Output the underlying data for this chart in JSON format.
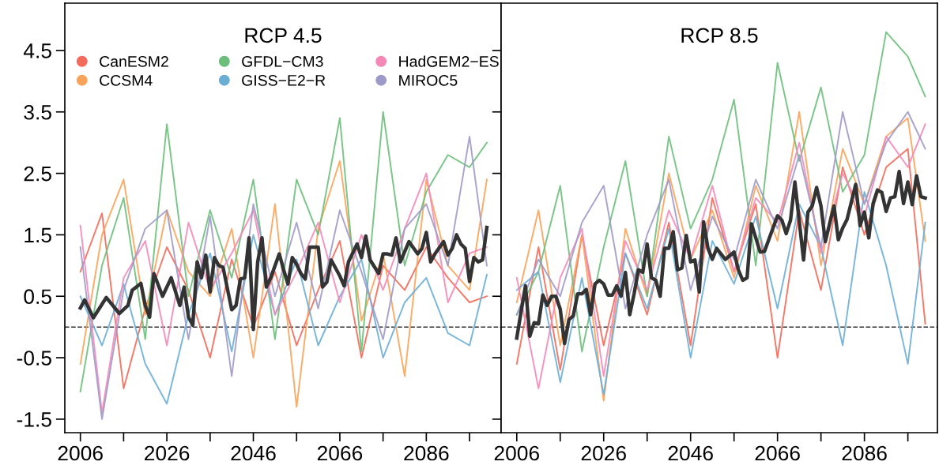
{
  "chart_data": [
    {
      "type": "line",
      "title": "RCP 4.5",
      "xlim": [
        2002.4,
        2103.3
      ],
      "ylim": [
        -1.72,
        5.27
      ],
      "xticks": [
        2006,
        {
          "value": 2016,
          "label": null
        },
        2026,
        {
          "value": 2036,
          "label": null
        },
        2046,
        {
          "value": 2056,
          "label": null
        },
        2066,
        {
          "value": 2076,
          "label": null
        },
        2086,
        {
          "value": 2096,
          "label": null
        }
      ],
      "yticks": [
        -1.5,
        -0.5,
        0.5,
        1.5,
        2.5,
        3.5,
        4.5
      ],
      "legend": "top",
      "grid": false,
      "marker": "none",
      "line_style": "solid",
      "ref_lines": [
        {
          "axis": "y",
          "value": 0,
          "line_style": "dashed",
          "color": "#333333"
        }
      ],
      "series": [
        {
          "name": "CanESM2",
          "color": "#f26b5b",
          "x": [
            2006,
            2011,
            2016,
            2021,
            2026,
            2031,
            2036,
            2041,
            2046,
            2051,
            2056,
            2061,
            2066,
            2071,
            2076,
            2081,
            2086,
            2091,
            2096,
            2100
          ],
          "values": [
            0.9,
            1.85,
            -1.0,
            0.3,
            1.3,
            0.6,
            -0.5,
            1.1,
            0.0,
            0.9,
            -0.3,
            0.6,
            1.4,
            -0.5,
            1.0,
            0.6,
            1.3,
            0.8,
            0.4,
            0.5
          ]
        },
        {
          "name": "CCSM4",
          "color": "#f9a35a",
          "x": [
            2006,
            2011,
            2016,
            2021,
            2026,
            2031,
            2036,
            2041,
            2046,
            2051,
            2056,
            2061,
            2066,
            2071,
            2076,
            2081,
            2086,
            2091,
            2096,
            2100
          ],
          "values": [
            -0.6,
            1.5,
            2.4,
            0.2,
            1.9,
            0.9,
            0.5,
            1.6,
            -0.5,
            2.0,
            -1.3,
            1.6,
            2.7,
            0.1,
            1.2,
            -0.8,
            2.4,
            1.0,
            0.6,
            2.4
          ]
        },
        {
          "name": "GFDL−CM3",
          "color": "#6cbf7a",
          "x": [
            2006,
            2011,
            2016,
            2021,
            2026,
            2031,
            2036,
            2041,
            2046,
            2051,
            2056,
            2061,
            2066,
            2071,
            2076,
            2081,
            2086,
            2091,
            2096,
            2100
          ],
          "values": [
            -1.05,
            1.0,
            2.1,
            -0.2,
            3.3,
            0.5,
            1.9,
            0.8,
            2.4,
            -0.2,
            2.4,
            1.5,
            3.4,
            -0.4,
            3.5,
            1.0,
            2.2,
            2.8,
            2.6,
            3.0
          ]
        },
        {
          "name": "GISS−E2−R",
          "color": "#6aaed6",
          "x": [
            2006,
            2011,
            2016,
            2021,
            2026,
            2031,
            2036,
            2041,
            2046,
            2051,
            2056,
            2061,
            2066,
            2071,
            2076,
            2081,
            2086,
            2091,
            2096,
            2100
          ],
          "values": [
            0.5,
            -0.3,
            0.7,
            -0.6,
            -1.25,
            0.2,
            1.2,
            -0.4,
            1.5,
            0.2,
            1.1,
            -0.3,
            0.5,
            1.1,
            -0.5,
            0.4,
            0.8,
            -0.1,
            -0.3,
            0.85
          ]
        },
        {
          "name": "HadGEM2−ES",
          "color": "#f489b8",
          "x": [
            2006,
            2011,
            2016,
            2021,
            2026,
            2031,
            2036,
            2041,
            2046,
            2051,
            2056,
            2061,
            2066,
            2071,
            2076,
            2081,
            2086,
            2091,
            2096,
            2100
          ],
          "values": [
            1.65,
            -1.4,
            0.8,
            1.4,
            -0.3,
            1.7,
            0.6,
            1.2,
            1.9,
            0.2,
            0.9,
            1.7,
            0.4,
            1.5,
            0.6,
            1.6,
            2.5,
            0.4,
            1.2,
            1.3
          ]
        },
        {
          "name": "MIROC5",
          "color": "#9e9ac8",
          "x": [
            2006,
            2011,
            2016,
            2021,
            2026,
            2031,
            2036,
            2041,
            2046,
            2051,
            2056,
            2061,
            2066,
            2071,
            2076,
            2081,
            2086,
            2091,
            2096,
            2100
          ],
          "values": [
            1.3,
            -1.5,
            0.6,
            1.6,
            1.9,
            -0.2,
            1.8,
            -0.8,
            2.0,
            0.5,
            1.7,
            0.3,
            1.9,
            0.9,
            -0.2,
            1.6,
            2.0,
            1.0,
            3.1,
            1.0
          ]
        },
        {
          "color": "#333333",
          "x": [
            2006,
            2007,
            2009,
            2012,
            2015,
            2017,
            2018,
            2020,
            2021,
            2022,
            2023,
            2025,
            2027,
            2029,
            2030,
            2031,
            2032,
            2033,
            2034,
            2035,
            2036,
            2037,
            2038,
            2039,
            2041,
            2042,
            2043,
            2044,
            2045,
            2046,
            2047,
            2048,
            2049,
            2050,
            2052,
            2053,
            2054,
            2055,
            2056,
            2057,
            2058,
            2059,
            2061,
            2062,
            2063,
            2064,
            2066,
            2067,
            2068,
            2070,
            2071,
            2072,
            2073,
            2075,
            2076,
            2077,
            2078,
            2079,
            2080,
            2082,
            2084,
            2085,
            2086,
            2087,
            2088,
            2090,
            2091,
            2092,
            2093,
            2094,
            2095,
            2096,
            2097,
            2098,
            2099,
            2100
          ],
          "values": [
            0.31,
            0.44,
            0.15,
            0.48,
            0.22,
            0.35,
            0.6,
            0.71,
            0.35,
            0.16,
            0.87,
            0.5,
            0.8,
            0.35,
            0.65,
            0.16,
            0.03,
            1.06,
            0.8,
            1.17,
            0.57,
            1.13,
            1.0,
            0.97,
            0.28,
            0.35,
            0.78,
            0.8,
            1.45,
            -0.04,
            1.06,
            1.45,
            0.65,
            0.8,
            1.19,
            0.93,
            0.7,
            1.13,
            1.02,
            0.87,
            0.78,
            1.3,
            1.3,
            0.65,
            0.73,
            1.09,
            0.83,
            0.67,
            1.06,
            1.35,
            1.13,
            1.48,
            1.09,
            0.87,
            1.19,
            1.19,
            1.17,
            1.45,
            1.06,
            1.39,
            1.19,
            1.28,
            1.54,
            1.06,
            1.19,
            1.39,
            1.17,
            1.28,
            1.5,
            1.35,
            1.28,
            0.74,
            1.13,
            1.06,
            1.09,
            1.62
          ]
        }
      ]
    },
    {
      "type": "line",
      "title": "RCP 8.5",
      "xlim": [
        2002.4,
        2102.8
      ],
      "ylim": [
        -1.72,
        5.27
      ],
      "xticks": [
        2006,
        {
          "value": 2016,
          "label": null
        },
        2026,
        {
          "value": 2036,
          "label": null
        },
        2046,
        {
          "value": 2056,
          "label": null
        },
        2066,
        {
          "value": 2076,
          "label": null
        },
        2086,
        {
          "value": 2096,
          "label": null
        }
      ],
      "yticks": [
        -1.5,
        -0.5,
        0.5,
        1.5,
        2.5,
        3.5,
        4.5
      ],
      "tick_labels": "x",
      "grid": false,
      "marker": "none",
      "line_style": "solid",
      "ref_lines": [
        {
          "axis": "y",
          "value": 0,
          "line_style": "dashed",
          "color": "#333333"
        }
      ],
      "series": [
        {
          "color": "#f26b5b",
          "x": [
            2006,
            2011,
            2016,
            2021,
            2026,
            2031,
            2036,
            2041,
            2046,
            2051,
            2056,
            2061,
            2066,
            2071,
            2076,
            2081,
            2086,
            2091,
            2096,
            2100
          ],
          "values": [
            -0.6,
            1.3,
            -0.7,
            1.5,
            -0.3,
            1.2,
            0.2,
            1.7,
            -0.3,
            2.1,
            0.9,
            2.0,
            -0.5,
            1.9,
            0.6,
            2.6,
            1.5,
            2.6,
            2.9,
            0.05
          ]
        },
        {
          "color": "#f9a35a",
          "x": [
            2006,
            2011,
            2016,
            2021,
            2026,
            2031,
            2036,
            2041,
            2046,
            2051,
            2056,
            2061,
            2066,
            2071,
            2076,
            2081,
            2086,
            2091,
            2096,
            2100
          ],
          "values": [
            0.4,
            1.9,
            -0.3,
            1.5,
            -1.2,
            1.6,
            0.5,
            2.5,
            1.1,
            1.9,
            0.8,
            2.3,
            1.4,
            3.5,
            1.0,
            2.9,
            2.0,
            3.1,
            3.4,
            1.4
          ]
        },
        {
          "color": "#6cbf7a",
          "x": [
            2006,
            2011,
            2016,
            2021,
            2026,
            2031,
            2036,
            2041,
            2046,
            2051,
            2056,
            2061,
            2066,
            2071,
            2076,
            2081,
            2086,
            2091,
            2096,
            2100
          ],
          "values": [
            0.2,
            0.9,
            2.3,
            -0.4,
            1.3,
            2.7,
            0.5,
            3.1,
            1.6,
            2.4,
            3.7,
            1.0,
            4.3,
            2.7,
            3.9,
            2.2,
            2.8,
            4.8,
            4.4,
            3.75
          ]
        },
        {
          "color": "#6aaed6",
          "x": [
            2006,
            2011,
            2016,
            2021,
            2026,
            2031,
            2036,
            2041,
            2046,
            2051,
            2056,
            2061,
            2066,
            2071,
            2076,
            2081,
            2086,
            2091,
            2096,
            2100
          ],
          "values": [
            0.6,
            0.9,
            -0.9,
            0.8,
            -1.1,
            1.2,
            0.3,
            1.6,
            -0.5,
            1.4,
            0.7,
            1.8,
            0.3,
            2.0,
            1.3,
            -0.3,
            2.2,
            1.0,
            -0.6,
            1.7
          ]
        },
        {
          "color": "#f489b8",
          "x": [
            2006,
            2011,
            2016,
            2021,
            2026,
            2031,
            2036,
            2041,
            2046,
            2051,
            2056,
            2061,
            2066,
            2071,
            2076,
            2081,
            2086,
            2091,
            2096,
            2100
          ],
          "values": [
            0.8,
            -1.0,
            0.8,
            1.6,
            -0.8,
            1.4,
            0.6,
            1.9,
            1.1,
            2.3,
            0.9,
            2.1,
            1.7,
            3.0,
            1.2,
            2.5,
            1.8,
            3.1,
            2.6,
            3.3
          ]
        },
        {
          "color": "#9e9ac8",
          "x": [
            2006,
            2011,
            2016,
            2021,
            2026,
            2031,
            2036,
            2041,
            2046,
            2051,
            2056,
            2061,
            2066,
            2071,
            2076,
            2081,
            2086,
            2091,
            2096,
            2100
          ],
          "values": [
            0.2,
            1.1,
            0.5,
            1.7,
            2.3,
            0.3,
            1.5,
            2.4,
            0.6,
            1.8,
            1.1,
            2.4,
            1.6,
            2.8,
            1.3,
            3.5,
            2.0,
            3.0,
            3.5,
            2.9
          ]
        },
        {
          "color": "#333333",
          "x": [
            2006,
            2007,
            2008,
            2009,
            2010,
            2011,
            2012,
            2013,
            2014,
            2015,
            2016,
            2017,
            2018,
            2019,
            2020,
            2021,
            2022,
            2023,
            2024,
            2025,
            2026,
            2027,
            2028,
            2029,
            2030,
            2031,
            2032,
            2033,
            2034,
            2035,
            2036,
            2037,
            2038,
            2039,
            2040,
            2041,
            2042,
            2043,
            2044,
            2045,
            2046,
            2047,
            2048,
            2049,
            2050,
            2051,
            2052,
            2054,
            2056,
            2057,
            2058,
            2059,
            2060,
            2062,
            2063,
            2066,
            2067,
            2068,
            2069,
            2070,
            2072,
            2073,
            2074,
            2075,
            2076,
            2077,
            2079,
            2080,
            2081,
            2082,
            2084,
            2085,
            2086,
            2087,
            2088,
            2089,
            2090,
            2091,
            2092,
            2093,
            2094,
            2095,
            2096,
            2097,
            2098,
            2099,
            2100
          ],
          "values": [
            -0.18,
            0.25,
            0.67,
            -0.15,
            0.07,
            0.05,
            0.52,
            0.35,
            0.5,
            0.5,
            0.29,
            -0.27,
            0.12,
            0.18,
            0.54,
            0.54,
            0.61,
            0.2,
            0.7,
            0.76,
            0.7,
            0.52,
            0.52,
            0.67,
            0.5,
            0.89,
            0.2,
            0.54,
            0.93,
            0.89,
            1.35,
            0.8,
            0.76,
            0.5,
            1.28,
            1.28,
            1.55,
            0.93,
            0.96,
            1.49,
            1.06,
            1.09,
            0.57,
            1.71,
            1.28,
            1.1,
            1.28,
            1.1,
            1.22,
            0.93,
            0.76,
            0.8,
            1.68,
            1.22,
            1.23,
            1.81,
            1.74,
            1.52,
            1.74,
            2.36,
            1.09,
            1.87,
            1.97,
            2.27,
            1.97,
            1.39,
            1.97,
            1.42,
            1.61,
            1.75,
            2.32,
            1.65,
            1.87,
            1.45,
            2.01,
            2.23,
            2.19,
            1.88,
            2.1,
            2.12,
            2.53,
            2.01,
            2.36,
            1.99,
            2.46,
            2.12,
            2.1
          ]
        }
      ]
    }
  ]
}
